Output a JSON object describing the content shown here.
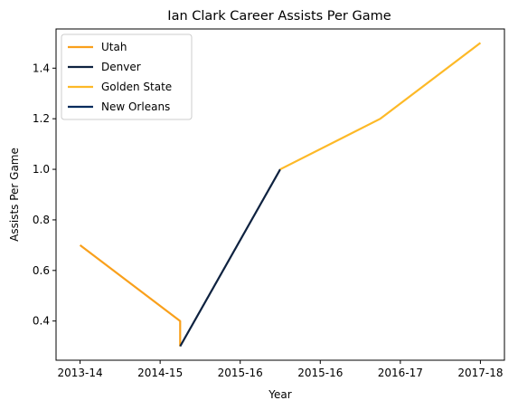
{
  "chart_data": {
    "type": "line",
    "title": "Ian Clark  Career Assists Per Game",
    "xlabel": "Year",
    "ylabel": "Assists Per Game",
    "x_ticks": [
      {
        "pos": 0,
        "label": "2013-14"
      },
      {
        "pos": 1,
        "label": "2014-15"
      },
      {
        "pos": 2,
        "label": "2015-16"
      },
      {
        "pos": 3,
        "label": "2015-16"
      },
      {
        "pos": 4,
        "label": "2016-17"
      },
      {
        "pos": 5,
        "label": "2017-18"
      }
    ],
    "xlim": [
      -0.3,
      5.3
    ],
    "ylim": [
      0.245,
      1.555
    ],
    "y_ticks": [
      0.4,
      0.6,
      0.8,
      1.0,
      1.2,
      1.4
    ],
    "y_tick_labels": [
      "0.4",
      "0.6",
      "0.8",
      "1.0",
      "1.2",
      "1.4"
    ],
    "legend_position": "upper-left",
    "series": [
      {
        "name": "Utah",
        "color": "#F9A01B",
        "points": [
          [
            0,
            0.7
          ],
          [
            1.25,
            0.4
          ],
          [
            1.25,
            0.3
          ]
        ]
      },
      {
        "name": "Denver",
        "color": "#0E2240",
        "points": [
          [
            1.25,
            0.3
          ],
          [
            2.5,
            1.0
          ]
        ]
      },
      {
        "name": "Golden State",
        "color": "#FDB927",
        "points": [
          [
            2.5,
            1.0
          ],
          [
            3.75,
            1.2
          ],
          [
            5,
            1.5
          ]
        ]
      },
      {
        "name": "New Orleans",
        "color": "#002B5C",
        "points": []
      }
    ]
  }
}
